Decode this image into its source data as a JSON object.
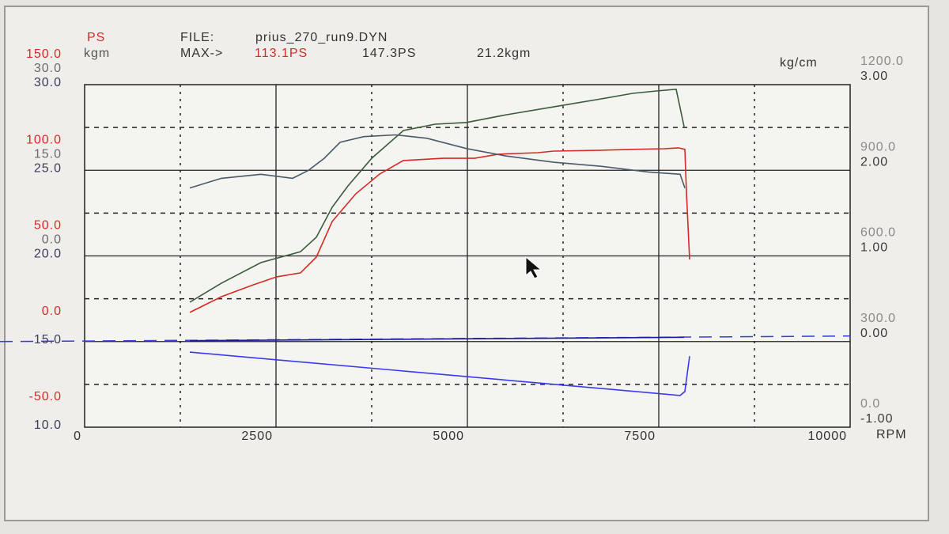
{
  "chart_data": {
    "type": "line",
    "header": {
      "file_label": "FILE:",
      "file_name": "prius_270_run9.DYN",
      "max_label": "MAX->",
      "max_values": [
        {
          "text": "113.1PS",
          "color": "#d62a24"
        },
        {
          "text": "147.3PS",
          "color": "#333333"
        },
        {
          "text": "21.2kgm",
          "color": "#333333"
        }
      ]
    },
    "x_label": "RPM",
    "xlim": [
      0,
      10000
    ],
    "xticks": [
      0,
      2500,
      5000,
      7500,
      10000
    ],
    "xminorticks": [
      1250,
      3750,
      6250,
      8750
    ],
    "axes": [
      {
        "title": "PS",
        "side": "left",
        "color": "#d62a24",
        "ylim": [
          -50,
          150
        ],
        "yticks": [
          {
            "value": 150,
            "label": "150.0"
          },
          {
            "value": 100,
            "label": "100.0"
          },
          {
            "value": 50,
            "label": "50.0"
          },
          {
            "value": 0,
            "label": "0.0"
          },
          {
            "value": -50,
            "label": "-50.0"
          }
        ],
        "yminorticks": [
          125,
          75,
          25,
          -25
        ]
      },
      {
        "title": "kgm",
        "side": "left",
        "color": "#6a6a6a",
        "ylim": [
          -30,
          30
        ],
        "yticks": [
          {
            "value": 30,
            "label": "30.0"
          },
          {
            "value": 15,
            "label": "15.0"
          },
          {
            "value": 0,
            "label": "0.0"
          }
        ]
      },
      {
        "side": "left",
        "color": "#3c3c5c",
        "ylim": [
          10,
          30
        ],
        "yticks": [
          {
            "value": 30,
            "label": "30.0"
          },
          {
            "value": 25,
            "label": "25.0"
          },
          {
            "value": 20,
            "label": "20.0"
          },
          {
            "value": 15,
            "label": "15.0"
          },
          {
            "value": 10,
            "label": "10.0"
          }
        ]
      },
      {
        "side": "right",
        "color": "#8a8a8a",
        "ylim": [
          0,
          1200
        ],
        "yticks": [
          {
            "value": 1200,
            "label": "1200.0"
          },
          {
            "value": 900,
            "label": "900.0"
          },
          {
            "value": 600,
            "label": "600.0"
          },
          {
            "value": 300,
            "label": "300.0"
          },
          {
            "value": 0,
            "label": "0.0"
          }
        ]
      },
      {
        "title": "kg/cm",
        "side": "right",
        "color": "#3a3a3a",
        "ylim": [
          -1,
          3
        ],
        "yticks": [
          {
            "value": 3,
            "label": "3.00"
          },
          {
            "value": 2,
            "label": "2.00"
          },
          {
            "value": 1,
            "label": "1.00"
          },
          {
            "value": 0,
            "label": "0.00"
          },
          {
            "value": -1,
            "label": "-1.00"
          }
        ]
      }
    ],
    "series": [
      {
        "color": "#3c5a3c",
        "axis": 0,
        "x": [
          1374,
          1787,
          2304,
          2820,
          3027,
          3233,
          3440,
          3750,
          4163,
          4576,
          4990,
          5506,
          6126,
          6746,
          7159,
          7469,
          7727,
          7831
        ],
        "values": [
          23.0,
          34.1,
          46.1,
          52.5,
          60.9,
          78.4,
          90.9,
          107.0,
          123.2,
          126.9,
          127.9,
          132.4,
          137.0,
          141.7,
          144.9,
          146.3,
          147.3,
          125.5
        ]
      },
      {
        "color": "#d62a24",
        "axis": 0,
        "x": [
          1374,
          1787,
          2200,
          2510,
          2820,
          3027,
          3233,
          3543,
          3853,
          4163,
          4680,
          5093,
          5403,
          5920,
          6126,
          6746,
          7159,
          7572,
          7758,
          7841,
          7862,
          7903
        ],
        "values": [
          17.0,
          26.2,
          33.1,
          37.8,
          40.1,
          49.3,
          70.1,
          86.3,
          97.8,
          105.7,
          107.0,
          107.0,
          109.4,
          110.3,
          111.2,
          111.7,
          112.2,
          112.6,
          113.1,
          112.2,
          87.2,
          47.9
        ]
      },
      {
        "color": "#4a5a68",
        "axis": 1,
        "x": [
          1374,
          1787,
          2304,
          2717,
          2924,
          3130,
          3337,
          3647,
          4060,
          4473,
          4990,
          5506,
          6126,
          6746,
          7366,
          7779,
          7841
        ],
        "values": [
          11.9,
          13.6,
          14.3,
          13.6,
          15.0,
          17.1,
          19.9,
          20.9,
          21.2,
          20.6,
          18.8,
          17.5,
          16.4,
          15.7,
          14.7,
          14.3,
          11.9
        ]
      },
      {
        "color": "#1a1aa0",
        "axis": 4,
        "x": [
          1374,
          7831
        ],
        "values": [
          0.01,
          0.05
        ]
      },
      {
        "color": "#3a3af0",
        "axis": 3,
        "x": [
          1374,
          7779,
          7841,
          7903
        ],
        "values": [
          263,
          111,
          125,
          249
        ]
      }
    ]
  }
}
